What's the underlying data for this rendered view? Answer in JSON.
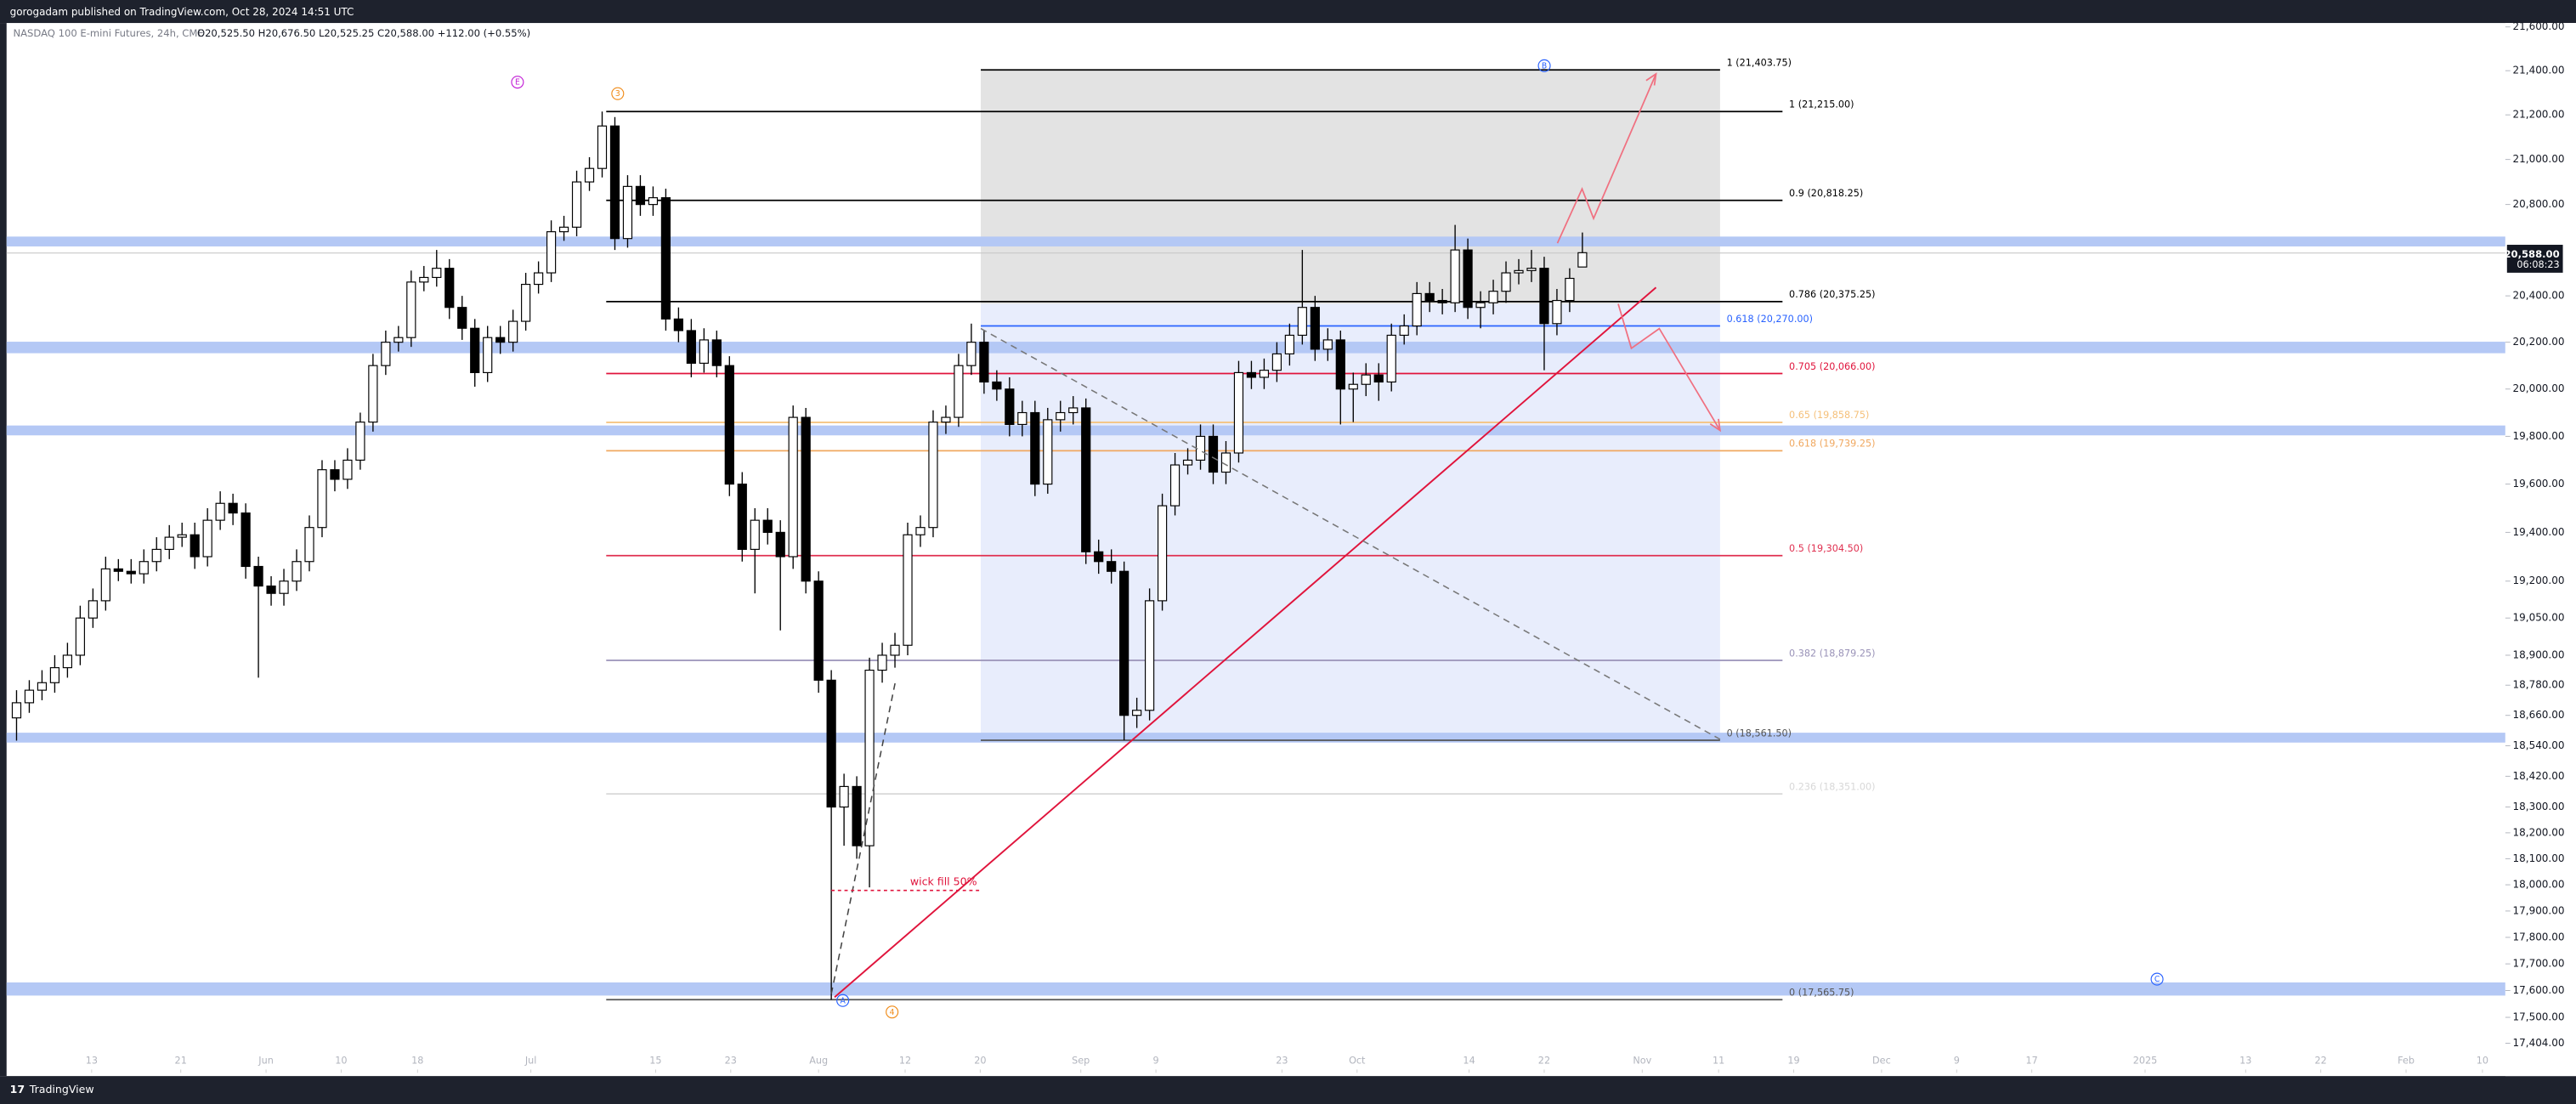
{
  "chart_data": {
    "type": "candlestick",
    "subtitle": "gorogadam published on TradingView.com, Oct 28, 2024 14:51 UTC",
    "title": "NASDAQ 100 E-mini Futures, 24h, CME",
    "ohlc_legend": "O20,525.50 H20,676.50 L20,525.25 C20,588.00 +112.00 (+0.55%)",
    "log_scale": true,
    "up_color": "#ffffff",
    "down_color": "#000000",
    "open": [
      18650,
      18710,
      18760,
      18790,
      18850,
      18900,
      19050,
      19120,
      19250,
      19240,
      19230,
      19280,
      19330,
      19380,
      19390,
      19300,
      19450,
      19520,
      19480,
      19260,
      19180,
      19150,
      19200,
      19280,
      19420,
      19660,
      19620,
      19700,
      19860,
      20100,
      20200,
      20220,
      20460,
      20480,
      20520,
      20350,
      20260,
      20070,
      20220,
      20200,
      20290,
      20450,
      20500,
      20680,
      20700,
      20900,
      20960,
      21150,
      20650,
      20880,
      20800,
      20830,
      20300,
      20250,
      20110,
      20210,
      20100,
      19600,
      19330,
      19450,
      19400,
      19300,
      19880,
      19200,
      18800,
      18300,
      18380,
      18150,
      18840,
      18900,
      18940,
      19390,
      19420,
      19860,
      19880,
      20100,
      20200,
      20030,
      20000,
      19850,
      19900,
      19600,
      19870,
      19900,
      19920,
      19320,
      19280,
      19240,
      18660,
      18680,
      19120,
      19510,
      19680,
      19700,
      19800,
      19650,
      19730,
      20070,
      20050,
      20080,
      20150,
      20230,
      20350,
      20170,
      20210,
      20000,
      20020,
      20060,
      20030,
      20230,
      20270,
      20410,
      20380,
      20370,
      20600,
      20350,
      20370,
      20420,
      20500,
      20510,
      20520,
      20280,
      20380,
      20525.5
    ],
    "high": [
      18760,
      18800,
      18840,
      18900,
      18950,
      19100,
      19170,
      19300,
      19290,
      19290,
      19330,
      19380,
      19430,
      19440,
      19440,
      19500,
      19570,
      19560,
      19520,
      19300,
      19220,
      19250,
      19330,
      19470,
      19700,
      19700,
      19750,
      19900,
      20150,
      20250,
      20270,
      20510,
      20530,
      20600,
      20560,
      20400,
      20300,
      20270,
      20270,
      20340,
      20500,
      20550,
      20730,
      20750,
      20950,
      21010,
      21215,
      21190,
      20930,
      20930,
      20880,
      20870,
      20350,
      20300,
      20260,
      20250,
      20140,
      19650,
      19500,
      19500,
      19450,
      19930,
      19920,
      19240,
      18840,
      18430,
      18420,
      18890,
      18950,
      18990,
      19440,
      19470,
      19910,
      19930,
      20150,
      20280,
      20250,
      20080,
      20050,
      19950,
      19950,
      19920,
      19950,
      19970,
      19960,
      19370,
      19330,
      19280,
      18730,
      19170,
      19560,
      19730,
      19750,
      19850,
      19850,
      19780,
      20120,
      20120,
      20130,
      20200,
      20280,
      20600,
      20400,
      20260,
      20250,
      20070,
      20110,
      20110,
      20280,
      20320,
      20460,
      20460,
      20430,
      20710,
      20650,
      20420,
      20470,
      20550,
      20560,
      20600,
      20570,
      20430,
      20520,
      20676.5
    ],
    "low": [
      18560,
      18670,
      18720,
      18750,
      18810,
      18860,
      19010,
      19080,
      19200,
      19190,
      19190,
      19240,
      19290,
      19340,
      19250,
      19260,
      19410,
      19430,
      19210,
      18810,
      19100,
      19100,
      19160,
      19240,
      19380,
      19570,
      19580,
      19660,
      19820,
      20060,
      20160,
      20180,
      20420,
      20440,
      20300,
      20210,
      20010,
      20030,
      20150,
      20160,
      20250,
      20410,
      20460,
      20640,
      20660,
      20860,
      20920,
      20600,
      20610,
      20750,
      20750,
      20250,
      20200,
      20050,
      20070,
      20050,
      19550,
      19280,
      19150,
      19350,
      19000,
      19250,
      19150,
      18750,
      17566,
      18150,
      18100,
      17990,
      18790,
      18850,
      18900,
      19340,
      19380,
      19810,
      19840,
      20060,
      19980,
      19950,
      19800,
      19800,
      19550,
      19560,
      19820,
      19850,
      19270,
      19230,
      19190,
      18561.5,
      18610,
      18640,
      19080,
      19470,
      19640,
      19660,
      19600,
      19600,
      19690,
      20000,
      20000,
      20030,
      20100,
      20190,
      20120,
      20120,
      19850,
      19860,
      19970,
      19950,
      19990,
      20190,
      20230,
      20330,
      20320,
      20330,
      20300,
      20260,
      20320,
      20370,
      20450,
      20460,
      20080,
      20230,
      20330,
      20525.25
    ],
    "close": [
      18710,
      18760,
      18790,
      18850,
      18900,
      19050,
      19120,
      19250,
      19240,
      19230,
      19280,
      19330,
      19380,
      19390,
      19300,
      19450,
      19520,
      19480,
      19260,
      19180,
      19150,
      19200,
      19280,
      19420,
      19660,
      19620,
      19700,
      19860,
      20100,
      20200,
      20220,
      20460,
      20480,
      20520,
      20350,
      20260,
      20070,
      20220,
      20200,
      20290,
      20450,
      20500,
      20680,
      20700,
      20900,
      20960,
      21150,
      20650,
      20880,
      20800,
      20830,
      20300,
      20250,
      20110,
      20210,
      20100,
      19600,
      19330,
      19450,
      19400,
      19300,
      19880,
      19200,
      18800,
      18300,
      18380,
      18150,
      18840,
      18900,
      18940,
      19390,
      19420,
      19860,
      19880,
      20100,
      20200,
      20030,
      20000,
      19850,
      19900,
      19600,
      19870,
      19900,
      19920,
      19320,
      19280,
      19240,
      18660,
      18680,
      19120,
      19510,
      19680,
      19700,
      19800,
      19650,
      19730,
      20070,
      20050,
      20080,
      20150,
      20230,
      20350,
      20170,
      20210,
      20000,
      20020,
      20060,
      20030,
      20230,
      20270,
      20410,
      20380,
      20370,
      20600,
      20350,
      20370,
      20420,
      20500,
      20510,
      20520,
      20280,
      20380,
      20476,
      20588
    ],
    "xlim": [
      -1.3,
      195.5
    ],
    "xticks": [
      {
        "value": 5.9,
        "label": "13"
      },
      {
        "value": 12.9,
        "label": "21"
      },
      {
        "value": 19.6,
        "label": "Jun"
      },
      {
        "value": 25.5,
        "label": "10"
      },
      {
        "value": 31.5,
        "label": "18"
      },
      {
        "value": 40.4,
        "label": "Jul"
      },
      {
        "value": 50.2,
        "label": "15"
      },
      {
        "value": 56.1,
        "label": "23"
      },
      {
        "value": 63.0,
        "label": "Aug"
      },
      {
        "value": 69.8,
        "label": "12"
      },
      {
        "value": 75.7,
        "label": "20"
      },
      {
        "value": 83.6,
        "label": "Sep"
      },
      {
        "value": 89.5,
        "label": "9"
      },
      {
        "value": 99.4,
        "label": "23"
      },
      {
        "value": 105.3,
        "label": "Oct"
      },
      {
        "value": 114.1,
        "label": "14"
      },
      {
        "value": 120.0,
        "label": "22"
      },
      {
        "value": 127.7,
        "label": "Nov"
      },
      {
        "value": 133.7,
        "label": "11"
      },
      {
        "value": 139.6,
        "label": "19"
      },
      {
        "value": 146.5,
        "label": "Dec"
      },
      {
        "value": 152.4,
        "label": "9"
      },
      {
        "value": 158.3,
        "label": "17"
      },
      {
        "value": 167.2,
        "label": "2025"
      },
      {
        "value": 175.1,
        "label": "13"
      },
      {
        "value": 181.0,
        "label": "22"
      },
      {
        "value": 187.7,
        "label": "Feb"
      },
      {
        "value": 193.7,
        "label": "10"
      }
    ],
    "ylim": [
      17295,
      21618
    ],
    "yticks": [
      {
        "value": 21600,
        "label": "21,600.00"
      },
      {
        "value": 21400,
        "label": "21,400.00"
      },
      {
        "value": 21200,
        "label": "21,200.00"
      },
      {
        "value": 21000,
        "label": "21,000.00"
      },
      {
        "value": 20800,
        "label": "20,800.00"
      },
      {
        "value": 20400,
        "label": "20,400.00"
      },
      {
        "value": 20200,
        "label": "20,200.00"
      },
      {
        "value": 20000,
        "label": "20,000.00"
      },
      {
        "value": 19800,
        "label": "19,800.00"
      },
      {
        "value": 19600,
        "label": "19,600.00"
      },
      {
        "value": 19400,
        "label": "19,400.00"
      },
      {
        "value": 19200,
        "label": "19,200.00"
      },
      {
        "value": 19050,
        "label": "19,050.00"
      },
      {
        "value": 18900,
        "label": "18,900.00"
      },
      {
        "value": 18780,
        "label": "18,780.00"
      },
      {
        "value": 18660,
        "label": "18,660.00"
      },
      {
        "value": 18540,
        "label": "18,540.00"
      },
      {
        "value": 18420,
        "label": "18,420.00"
      },
      {
        "value": 18300,
        "label": "18,300.00"
      },
      {
        "value": 18200,
        "label": "18,200.00"
      },
      {
        "value": 18100,
        "label": "18,100.00"
      },
      {
        "value": 18000,
        "label": "18,000.00"
      },
      {
        "value": 17900,
        "label": "17,900.00"
      },
      {
        "value": 17800,
        "label": "17,800.00"
      },
      {
        "value": 17700,
        "label": "17,700.00"
      },
      {
        "value": 17600,
        "label": "17,600.00"
      },
      {
        "value": 17500,
        "label": "17,500.00"
      },
      {
        "value": 17404,
        "label": "17,404.00"
      }
    ],
    "last_price": {
      "value": 20588,
      "label": "20,588.00"
    },
    "countdown": "06:08:23",
    "fib_a": [
      {
        "label": "1 (21,215.00)",
        "value": 21215,
        "color": "#000000"
      },
      {
        "label": "0.9 (20,818.25)",
        "value": 20818.25,
        "color": "#000000"
      },
      {
        "label": "0.786 (20,375.25)",
        "value": 20375.25,
        "color": "#000000"
      },
      {
        "label": "0.705 (20,066.00)",
        "value": 20066,
        "color": "#e0143c"
      },
      {
        "label": "0.65 (19,858.75)",
        "value": 19858.75,
        "color": "#f5c07a"
      },
      {
        "label": "0.618 (19,739.25)",
        "value": 19739.25,
        "color": "#f0a860"
      },
      {
        "label": "0.5 (19,304.50)",
        "value": 19304.5,
        "color": "#e03050"
      },
      {
        "label": "0.382 (18,879.25)",
        "value": 18879.25,
        "color": "#9a93b8"
      },
      {
        "label": "0.236 (18,351.00)",
        "value": 18351,
        "color": "#d8d8d8"
      },
      {
        "label": "0 (17,565.75)",
        "value": 17565.75,
        "color": "#555555"
      }
    ],
    "fib_b": [
      {
        "label": "1 (21,403.75)",
        "value": 21403.75,
        "color": "#000000"
      },
      {
        "label": "0.618 (20,270.00)",
        "value": 20270,
        "color": "#2962ff"
      },
      {
        "label": "0 (18,561.50)",
        "value": 18561.5,
        "color": "#555555"
      }
    ],
    "waves": [
      {
        "text": "E",
        "color": "#c21fd6"
      },
      {
        "text": "3",
        "color": "#f08c1a"
      },
      {
        "text": "B",
        "color": "#2962ff"
      },
      {
        "text": "A",
        "color": "#2962ff"
      },
      {
        "text": "4",
        "color": "#f08c1a"
      },
      {
        "text": "C",
        "color": "#2962ff"
      }
    ],
    "note": "wick fill 50%",
    "brand": "TradingView"
  }
}
